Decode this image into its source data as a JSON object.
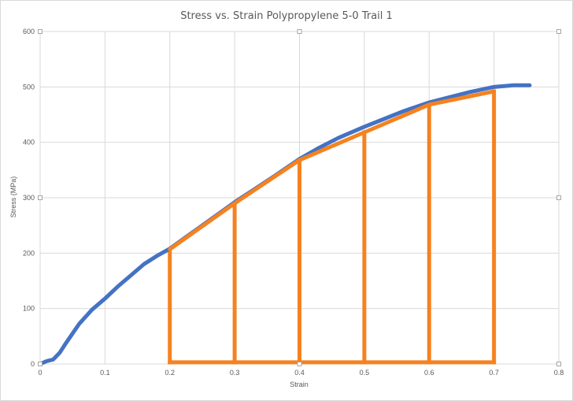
{
  "chart_data": {
    "type": "line",
    "title": "Stress vs. Strain Polypropylene 5-0 Trail 1",
    "xlabel": "Strain",
    "ylabel": "Stress (MPa)",
    "xlim": [
      0,
      0.8
    ],
    "ylim": [
      0,
      600
    ],
    "x_ticks": [
      "0",
      "0.1",
      "0.2",
      "0.3",
      "0.4",
      "0.5",
      "0.6",
      "0.7",
      "0.8"
    ],
    "y_ticks": [
      "0",
      "100",
      "200",
      "300",
      "400",
      "500",
      "600"
    ],
    "grid": true,
    "legend": "none",
    "series": [
      {
        "color": "#4472C4",
        "x": [
          0.0,
          0.01,
          0.02,
          0.03,
          0.04,
          0.05,
          0.06,
          0.07,
          0.08,
          0.09,
          0.1,
          0.12,
          0.14,
          0.16,
          0.18,
          0.2,
          0.22,
          0.25,
          0.28,
          0.3,
          0.33,
          0.36,
          0.4,
          0.43,
          0.46,
          0.5,
          0.53,
          0.56,
          0.6,
          0.63,
          0.66,
          0.7,
          0.73,
          0.755
        ],
        "y": [
          0,
          5,
          8,
          20,
          38,
          55,
          72,
          85,
          98,
          108,
          118,
          140,
          160,
          180,
          195,
          208,
          225,
          250,
          275,
          292,
          315,
          338,
          370,
          390,
          408,
          428,
          442,
          456,
          472,
          481,
          490,
          500,
          503,
          503
        ]
      },
      {
        "color": "#F58220",
        "x": [
          0.2,
          0.3,
          0.4,
          0.5,
          0.6,
          0.7
        ],
        "y": [
          207,
          290,
          368,
          418,
          468,
          492
        ]
      }
    ],
    "drop_lines": {
      "color": "#F58220",
      "x": [
        0.2,
        0.3,
        0.4,
        0.5,
        0.6,
        0.7
      ],
      "y_top": [
        207,
        290,
        368,
        418,
        468,
        492
      ],
      "y_base": 3
    }
  }
}
